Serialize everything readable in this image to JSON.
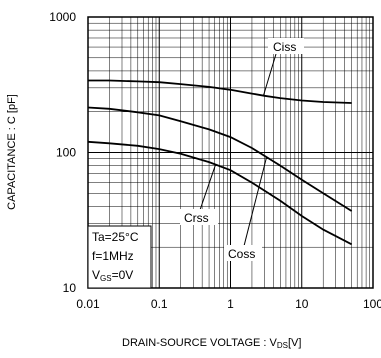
{
  "chart_data": {
    "type": "line",
    "xlabel": "DRAIN-SOURCE VOLTAGE : V",
    "xlabel_sub": "DS",
    "xlabel_unit": "[V]",
    "ylabel": "CAPACITANCE : C [pF]",
    "x_scale": "log",
    "y_scale": "log",
    "xlim": [
      0.01,
      100
    ],
    "ylim": [
      10,
      1000
    ],
    "x_ticks": [
      "0.01",
      "0.1",
      "1",
      "10",
      "100"
    ],
    "y_ticks": [
      "10",
      "100",
      "1000"
    ],
    "grid": true,
    "conditions": {
      "line1": "Ta=25°C",
      "line2": "f=1MHz",
      "line3_main": "V",
      "line3_sub": "GS",
      "line3_rest": "=0V"
    },
    "series": [
      {
        "name": "Ciss",
        "x": [
          0.01,
          0.02,
          0.05,
          0.1,
          0.2,
          0.5,
          1,
          2,
          3,
          5,
          10,
          20,
          50
        ],
        "y": [
          340,
          340,
          335,
          330,
          320,
          305,
          290,
          272,
          262,
          252,
          242,
          236,
          232
        ]
      },
      {
        "name": "Coss",
        "x": [
          0.01,
          0.02,
          0.05,
          0.1,
          0.2,
          0.5,
          1,
          2,
          5,
          10,
          20,
          50
        ],
        "y": [
          215,
          210,
          198,
          188,
          170,
          148,
          130,
          108,
          80,
          63,
          50,
          37
        ]
      },
      {
        "name": "Crss",
        "x": [
          0.01,
          0.02,
          0.05,
          0.1,
          0.2,
          0.5,
          1,
          2,
          5,
          10,
          20,
          50
        ],
        "y": [
          120,
          117,
          112,
          106,
          98,
          85,
          74,
          60,
          44,
          34,
          27,
          21
        ]
      }
    ]
  }
}
